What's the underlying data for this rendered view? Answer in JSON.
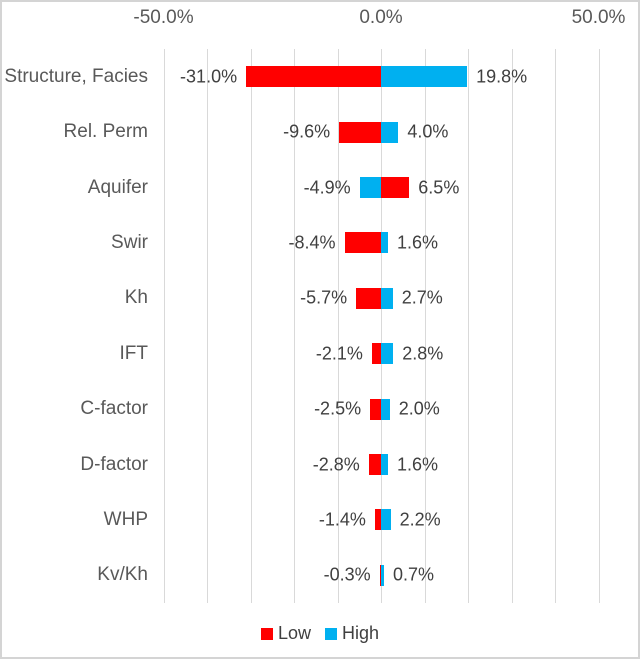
{
  "chart_data": {
    "type": "bar",
    "variant": "tornado",
    "orientation": "horizontal",
    "title": "",
    "xlabel": "",
    "ylabel": "",
    "categories": [
      "Structure, Facies",
      "Rel. Perm",
      "Aquifer",
      "Swir",
      "Kh",
      "IFT",
      "C-factor",
      "D-factor",
      "WHP",
      "Kv/Kh"
    ],
    "series": [
      {
        "name": "Low",
        "color": "#FF0000",
        "values": [
          -31.0,
          -9.6,
          6.5,
          -8.4,
          -5.7,
          -2.1,
          -2.5,
          -2.8,
          -1.4,
          -0.3
        ]
      },
      {
        "name": "High",
        "color": "#00B0F0",
        "values": [
          19.8,
          4.0,
          -4.9,
          1.6,
          2.7,
          2.8,
          2.0,
          1.6,
          2.2,
          0.7
        ]
      }
    ],
    "data_labels": {
      "left": [
        "-31.0%",
        "-9.6%",
        "-4.9%",
        "-8.4%",
        "-5.7%",
        "-2.1%",
        "-2.5%",
        "-2.8%",
        "-1.4%",
        "-0.3%"
      ],
      "right": [
        "19.8%",
        "4.0%",
        "6.5%",
        "1.6%",
        "2.7%",
        "2.8%",
        "2.0%",
        "1.6%",
        "2.2%",
        "0.7%"
      ]
    },
    "x_ticks": [
      {
        "label": "-50.0%",
        "value": -50
      },
      {
        "label": "0.0%",
        "value": 0
      },
      {
        "label": "50.0%",
        "value": 50
      }
    ],
    "xlim": [
      -50,
      50
    ],
    "gridline_step": 10,
    "grid": true,
    "legend_position": "bottom",
    "legend": [
      {
        "label": "Low",
        "color": "#FF0000"
      },
      {
        "label": "High",
        "color": "#00B0F0"
      }
    ],
    "colors": {
      "gridline": "#d9d9d9",
      "axis_text": "#595959",
      "value_text": "#404040"
    }
  }
}
